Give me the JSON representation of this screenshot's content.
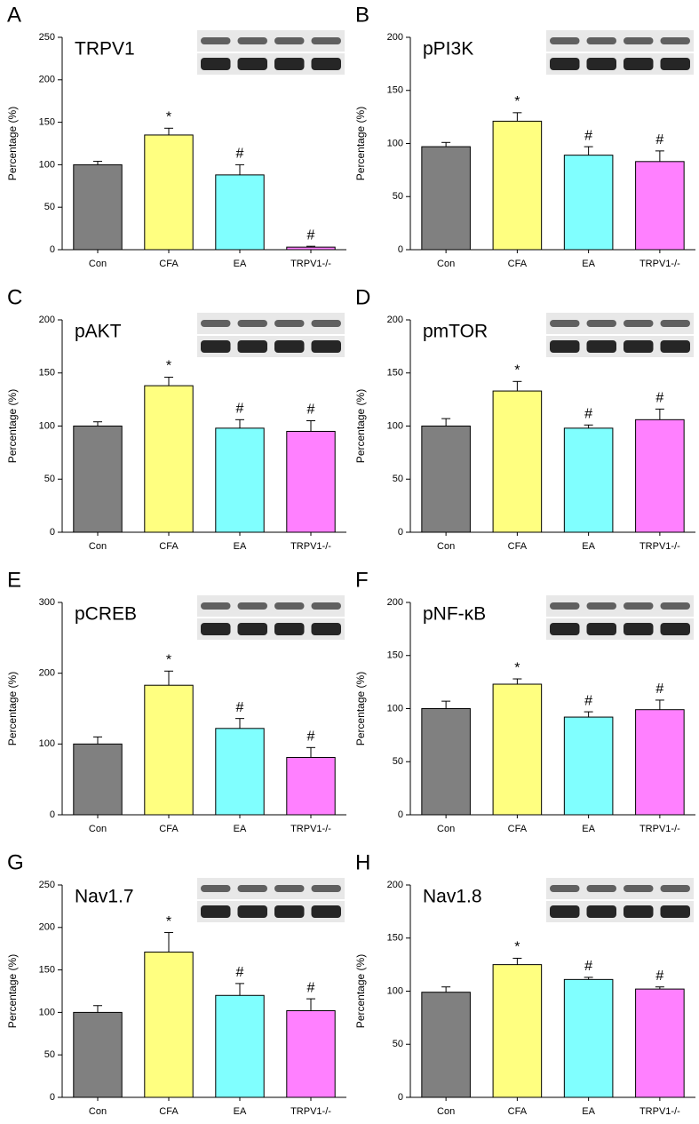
{
  "chart_data": [
    {
      "type": "bar",
      "panel_label": "A",
      "title": "TRPV1",
      "ylabel": "Percentage (%)",
      "categories": [
        "Con",
        "CFA",
        "EA",
        "TRPV1-/-"
      ],
      "values": [
        100,
        135,
        88,
        3
      ],
      "errors": [
        4,
        8,
        12,
        1
      ],
      "markers": [
        null,
        "*",
        "#",
        "#"
      ],
      "colors": [
        "#808080",
        "#ffff80",
        "#80ffff",
        "#ff80ff"
      ],
      "ylim": [
        0,
        250
      ],
      "yticks": [
        0,
        50,
        100,
        150,
        200,
        250
      ]
    },
    {
      "type": "bar",
      "panel_label": "B",
      "title": "pPI3K",
      "ylabel": "Percentage (%)",
      "categories": [
        "Con",
        "CFA",
        "EA",
        "TRPV1-/-"
      ],
      "values": [
        97,
        121,
        89,
        83
      ],
      "errors": [
        4,
        8,
        8,
        10
      ],
      "markers": [
        null,
        "*",
        "#",
        "#"
      ],
      "colors": [
        "#808080",
        "#ffff80",
        "#80ffff",
        "#ff80ff"
      ],
      "ylim": [
        0,
        200
      ],
      "yticks": [
        0,
        50,
        100,
        150,
        200
      ]
    },
    {
      "type": "bar",
      "panel_label": "C",
      "title": "pAKT",
      "ylabel": "Percentage (%)",
      "categories": [
        "Con",
        "CFA",
        "EA",
        "TRPV1-/-"
      ],
      "values": [
        100,
        138,
        98,
        95
      ],
      "errors": [
        4,
        8,
        8,
        10
      ],
      "markers": [
        null,
        "*",
        "#",
        "#"
      ],
      "colors": [
        "#808080",
        "#ffff80",
        "#80ffff",
        "#ff80ff"
      ],
      "ylim": [
        0,
        200
      ],
      "yticks": [
        0,
        50,
        100,
        150,
        200
      ]
    },
    {
      "type": "bar",
      "panel_label": "D",
      "title": "pmTOR",
      "ylabel": "Percentage (%)",
      "categories": [
        "Con",
        "CFA",
        "EA",
        "TRPV1-/-"
      ],
      "values": [
        100,
        133,
        98,
        106
      ],
      "errors": [
        7,
        9,
        3,
        10
      ],
      "markers": [
        null,
        "*",
        "#",
        "#"
      ],
      "colors": [
        "#808080",
        "#ffff80",
        "#80ffff",
        "#ff80ff"
      ],
      "ylim": [
        0,
        200
      ],
      "yticks": [
        0,
        50,
        100,
        150,
        200
      ]
    },
    {
      "type": "bar",
      "panel_label": "E",
      "title": "pCREB",
      "ylabel": "Percentage (%)",
      "categories": [
        "Con",
        "CFA",
        "EA",
        "TRPV1-/-"
      ],
      "values": [
        100,
        183,
        122,
        81
      ],
      "errors": [
        10,
        20,
        14,
        14
      ],
      "markers": [
        null,
        "*",
        "#",
        "#"
      ],
      "colors": [
        "#808080",
        "#ffff80",
        "#80ffff",
        "#ff80ff"
      ],
      "ylim": [
        0,
        300
      ],
      "yticks": [
        0,
        100,
        200,
        300
      ]
    },
    {
      "type": "bar",
      "panel_label": "F",
      "title": "pNF-κB",
      "ylabel": "Percentage (%)",
      "categories": [
        "Con",
        "CFA",
        "EA",
        "TRPV1-/-"
      ],
      "values": [
        100,
        123,
        92,
        99
      ],
      "errors": [
        7,
        5,
        5,
        9
      ],
      "markers": [
        null,
        "*",
        "#",
        "#"
      ],
      "colors": [
        "#808080",
        "#ffff80",
        "#80ffff",
        "#ff80ff"
      ],
      "ylim": [
        0,
        200
      ],
      "yticks": [
        0,
        50,
        100,
        150,
        200
      ]
    },
    {
      "type": "bar",
      "panel_label": "G",
      "title": "Nav1.7",
      "ylabel": "Percentage (%)",
      "categories": [
        "Con",
        "CFA",
        "EA",
        "TRPV1-/-"
      ],
      "values": [
        100,
        171,
        120,
        102
      ],
      "errors": [
        8,
        23,
        14,
        14
      ],
      "markers": [
        null,
        "*",
        "#",
        "#"
      ],
      "colors": [
        "#808080",
        "#ffff80",
        "#80ffff",
        "#ff80ff"
      ],
      "ylim": [
        0,
        250
      ],
      "yticks": [
        0,
        50,
        100,
        150,
        200,
        250
      ]
    },
    {
      "type": "bar",
      "panel_label": "H",
      "title": "Nav1.8",
      "ylabel": "Percentage (%)",
      "categories": [
        "Con",
        "CFA",
        "EA",
        "TRPV1-/-"
      ],
      "values": [
        99,
        125,
        111,
        102
      ],
      "errors": [
        5,
        6,
        2,
        2
      ],
      "markers": [
        null,
        "*",
        "#",
        "#"
      ],
      "colors": [
        "#808080",
        "#ffff80",
        "#80ffff",
        "#ff80ff"
      ],
      "ylim": [
        0,
        200
      ],
      "yticks": [
        0,
        50,
        100,
        150,
        200
      ]
    }
  ]
}
